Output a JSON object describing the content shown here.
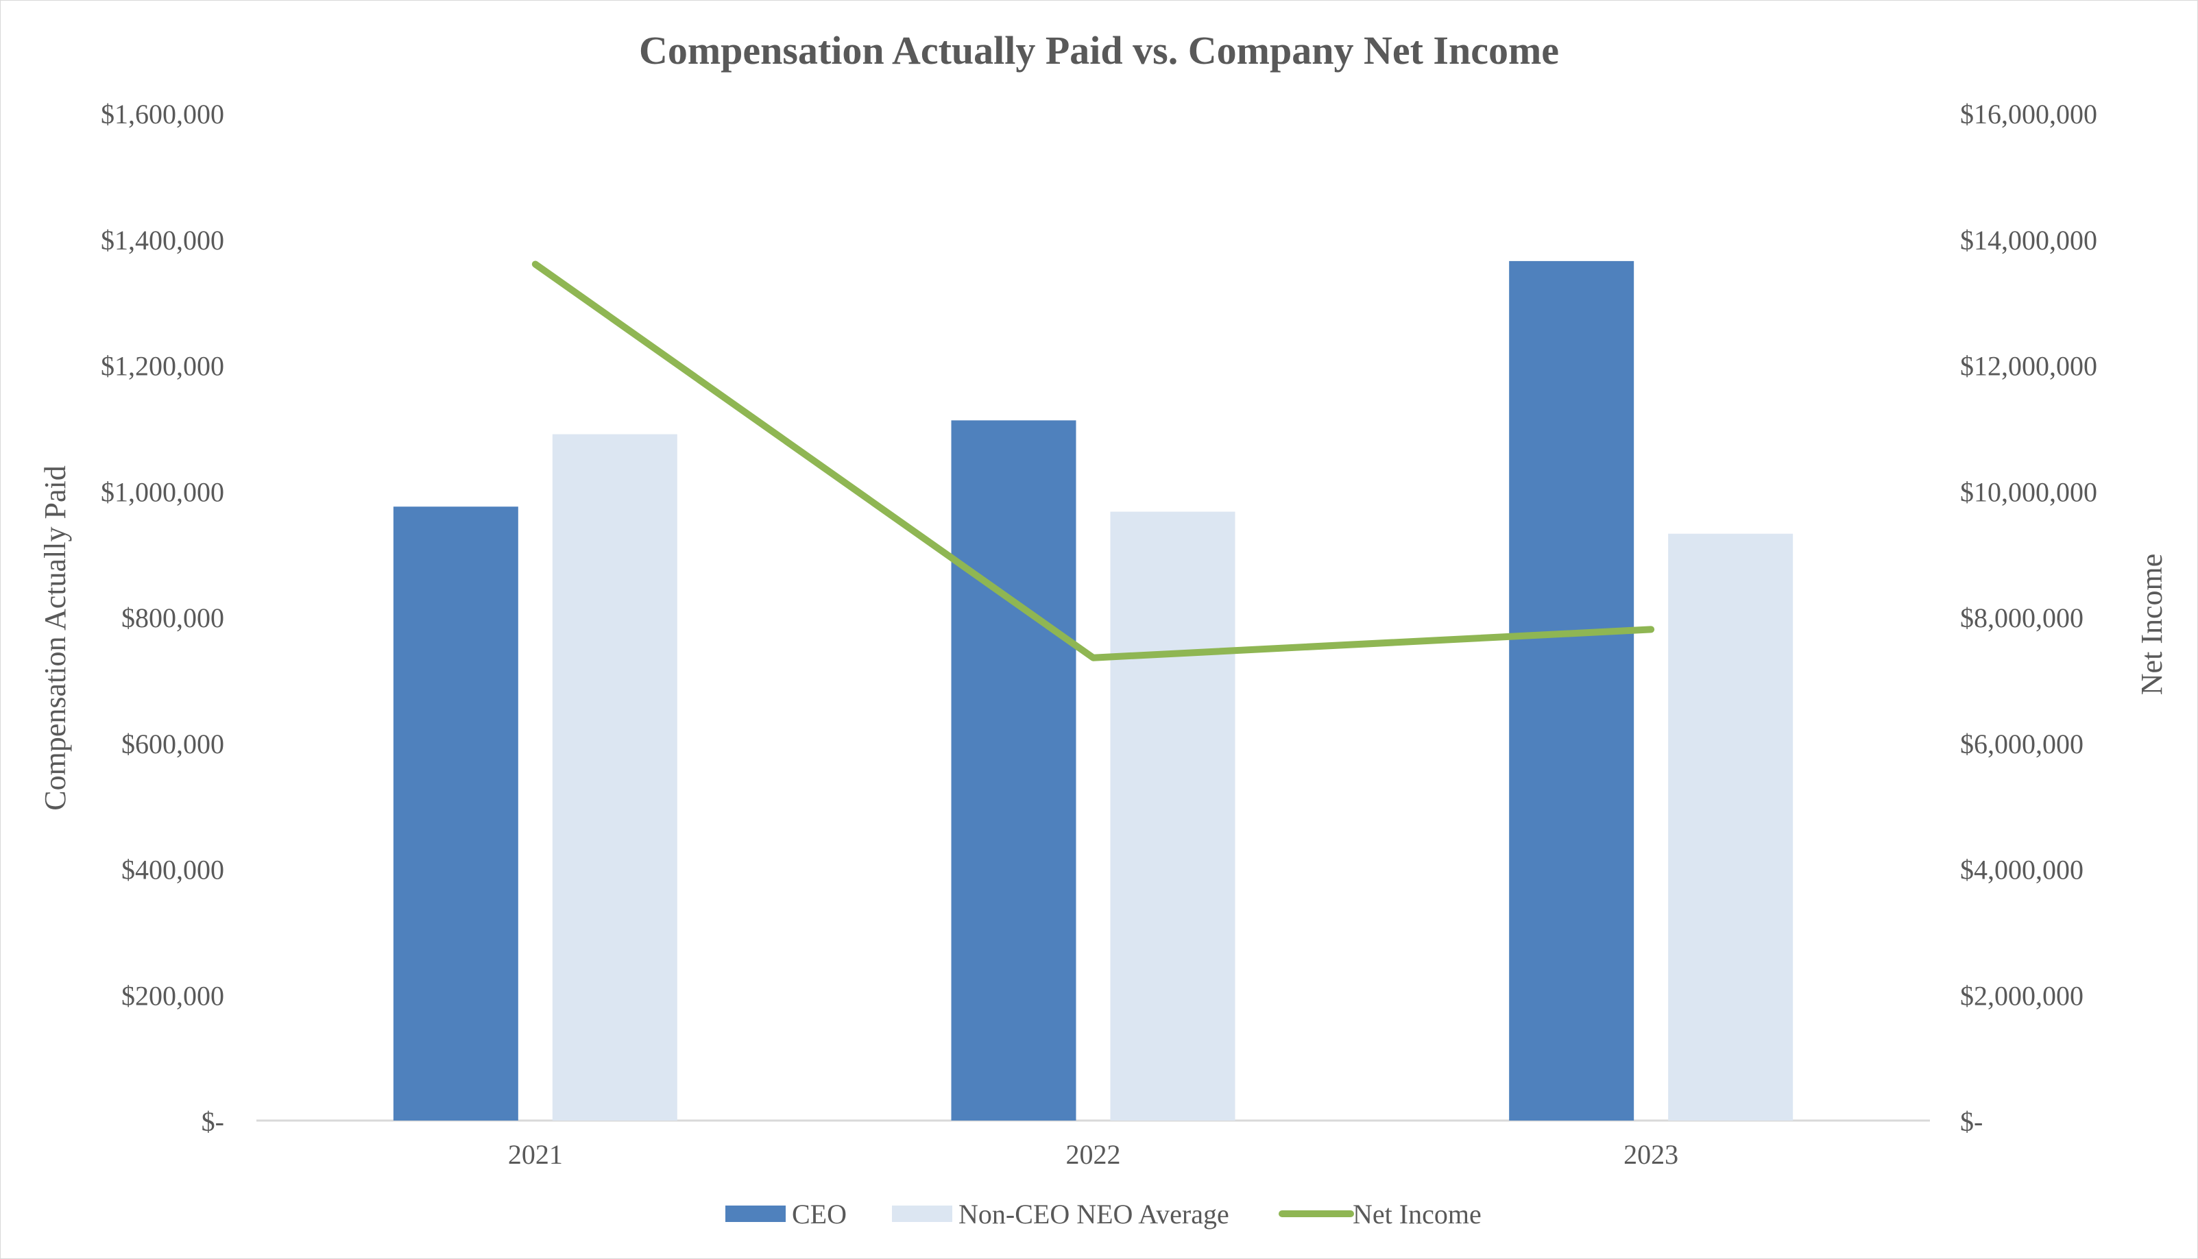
{
  "chart_data": {
    "type": "bar",
    "title": "Compensation Actually Paid vs. Company Net Income",
    "categories": [
      "2021",
      "2022",
      "2023"
    ],
    "ylabel": "Compensation Actually Paid",
    "y2label": "Net Income",
    "ylim": [
      0,
      1600000
    ],
    "y2lim": [
      0,
      16000000
    ],
    "yticks": [
      0,
      200000,
      400000,
      600000,
      800000,
      1000000,
      1200000,
      1400000,
      1600000
    ],
    "yticklabels": [
      "$-",
      "$200,000",
      "$400,000",
      "$600,000",
      "$800,000",
      "$1,000,000",
      "$1,200,000",
      "$1,400,000",
      "$1,600,000"
    ],
    "y2ticks": [
      0,
      2000000,
      4000000,
      6000000,
      8000000,
      10000000,
      12000000,
      14000000,
      16000000
    ],
    "y2ticklabels": [
      "$-",
      "$2,000,000",
      "$4,000,000",
      "$6,000,000",
      "$8,000,000",
      "$10,000,000",
      "$12,000,000",
      "$14,000,000",
      "$16,000,000"
    ],
    "grid": false,
    "legend_position": "bottom",
    "series": [
      {
        "name": "CEO",
        "type": "bar",
        "axis": "left",
        "color": "#4f81bd",
        "values": [
          975000,
          1112000,
          1365000
        ]
      },
      {
        "name": "Non-CEO NEO Average",
        "type": "bar",
        "axis": "left",
        "color": "#dce6f2",
        "values": [
          1090000,
          967000,
          932000
        ]
      },
      {
        "name": "Net Income",
        "type": "line",
        "axis": "right",
        "color": "#8fb653",
        "values": [
          13600000,
          7350000,
          7800000
        ]
      }
    ]
  }
}
